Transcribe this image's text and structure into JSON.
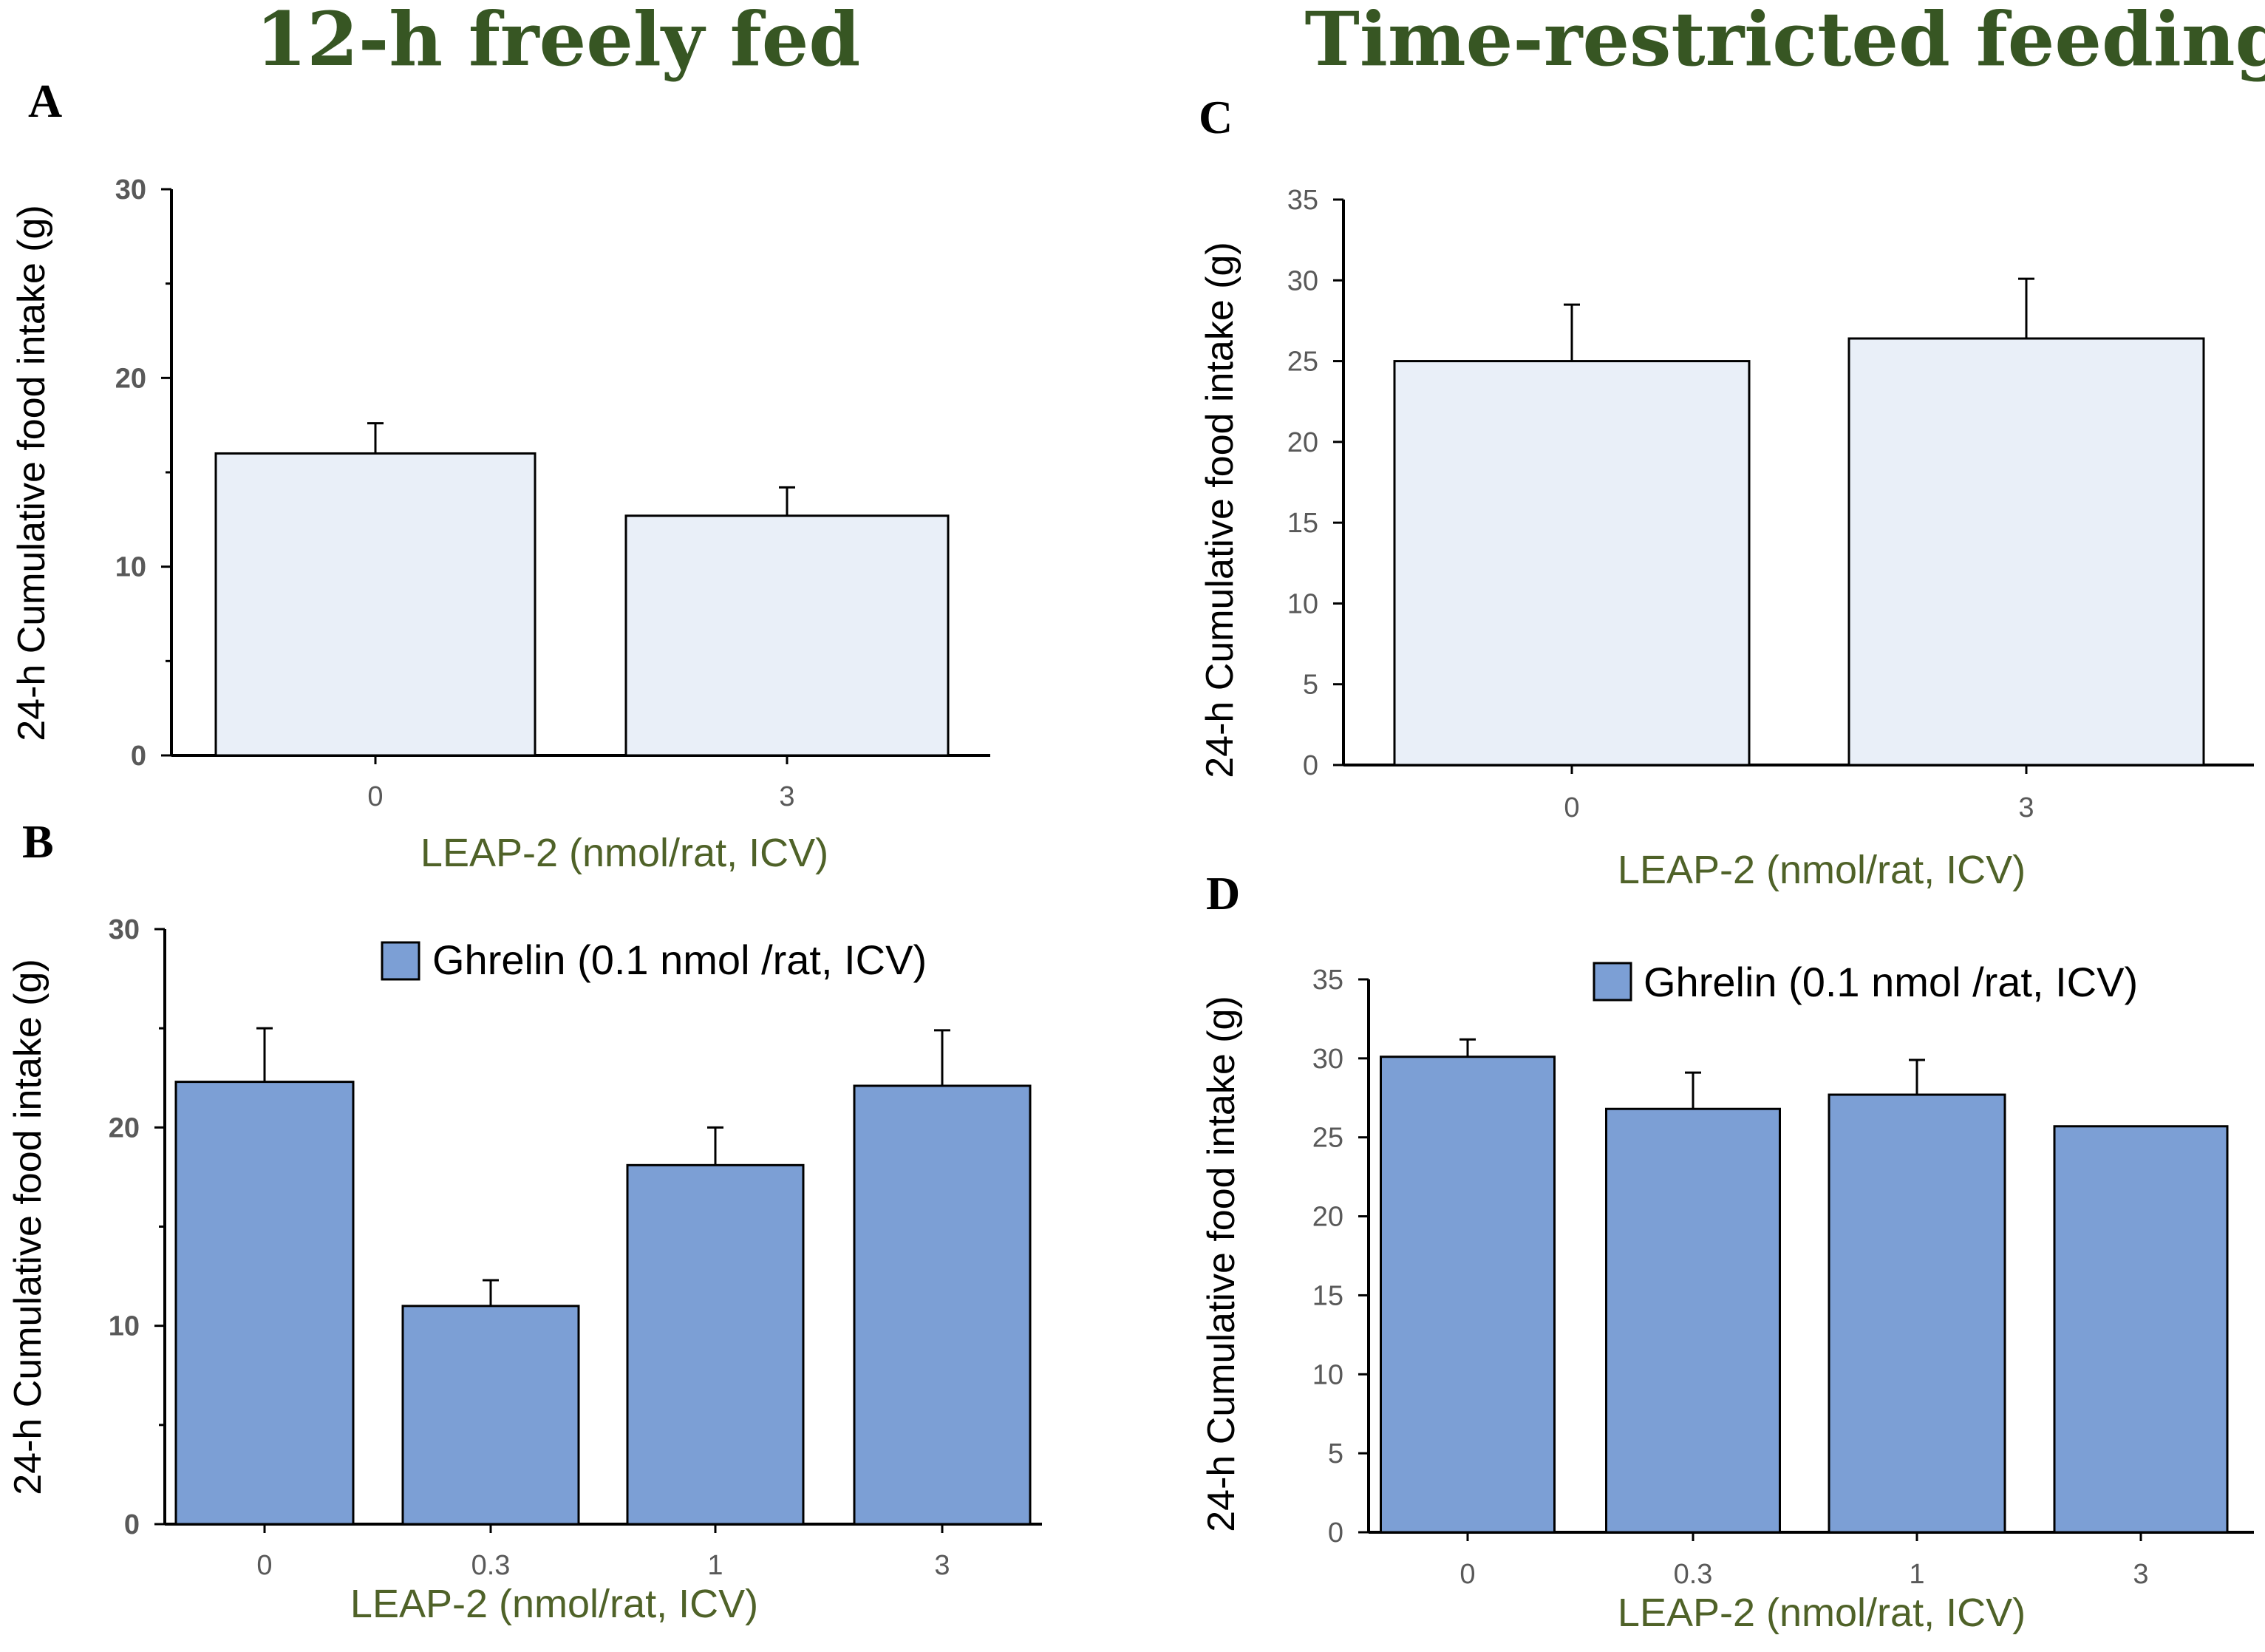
{
  "column_titles": [
    "12-h freely fed",
    "Time-restricted feeding"
  ],
  "colors": {
    "control": "#e9eff8",
    "ghrelin": "#7c9fd5",
    "title": "#375623",
    "xlabel": "#4f6228"
  },
  "chart_data": [
    {
      "panel": "A",
      "type": "bar",
      "categories": [
        "0",
        "3"
      ],
      "series": [
        {
          "name": "",
          "values": [
            16,
            12.7
          ],
          "errors": [
            1.6,
            1.5
          ]
        }
      ],
      "ylabel": "24-h Cumulative food intake (g)",
      "xlabel": "LEAP-2 (nmol/rat, ICV)",
      "ylim": [
        0,
        30
      ],
      "yticks": [
        0,
        10,
        20,
        30
      ],
      "yticks_bold": true,
      "minor_per_major": 2,
      "legend": null
    },
    {
      "panel": "B",
      "type": "bar",
      "categories": [
        "0",
        "0.3",
        "1",
        "3"
      ],
      "series": [
        {
          "name": "Ghrelin (0.1 nmol /rat, ICV)",
          "values": [
            22.3,
            11,
            18.1,
            22.1
          ],
          "errors": [
            2.7,
            1.3,
            1.9,
            2.8
          ]
        }
      ],
      "ylabel": "24-h Cumulative food intake (g)",
      "xlabel": "LEAP-2 (nmol/rat, ICV)",
      "ylim": [
        0,
        30
      ],
      "yticks": [
        0,
        10,
        20,
        30
      ],
      "yticks_bold": true,
      "minor_per_major": 2,
      "legend": "top-right"
    },
    {
      "panel": "C",
      "type": "bar",
      "categories": [
        "0",
        "3"
      ],
      "series": [
        {
          "name": "",
          "values": [
            25,
            26.4
          ],
          "errors": [
            3.5,
            3.7
          ]
        }
      ],
      "ylabel": "24-h Cumulative food intake (g)",
      "xlabel": "LEAP-2 (nmol/rat, ICV)",
      "ylim": [
        0,
        35
      ],
      "yticks": [
        0,
        5,
        10,
        15,
        20,
        25,
        30,
        35
      ],
      "yticks_bold": false,
      "minor_per_major": 1,
      "legend": null
    },
    {
      "panel": "D",
      "type": "bar",
      "categories": [
        "0",
        "0.3",
        "1",
        "3"
      ],
      "series": [
        {
          "name": "Ghrelin (0.1 nmol /rat, ICV)",
          "values": [
            30.1,
            26.8,
            27.7,
            25.7
          ],
          "errors": [
            1.1,
            2.3,
            2.2,
            0
          ]
        }
      ],
      "ylabel": "24-h Cumulative food intake (g)",
      "xlabel": "LEAP-2 (nmol/rat, ICV)",
      "ylim": [
        0,
        35
      ],
      "yticks": [
        0,
        5,
        10,
        15,
        20,
        25,
        30,
        35
      ],
      "yticks_bold": false,
      "minor_per_major": 1,
      "legend": "top-right"
    }
  ]
}
